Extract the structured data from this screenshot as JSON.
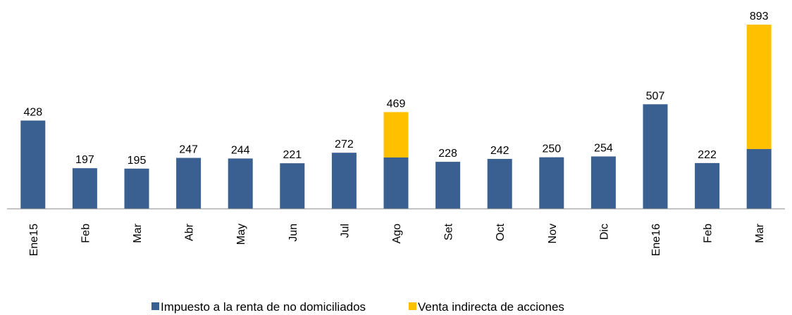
{
  "chart_data": {
    "type": "stacked_bar",
    "categories": [
      "Ene15",
      "Feb",
      "Mar",
      "Abr",
      "May",
      "Jun",
      "Jul",
      "Ago",
      "Set",
      "Oct",
      "Nov",
      "Dic",
      "Ene16",
      "Feb",
      "Mar"
    ],
    "series": [
      {
        "name": "Impuesto a la renta de no domiciliados",
        "color": "#3a5f91",
        "values": [
          428,
          197,
          195,
          247,
          244,
          221,
          272,
          249,
          228,
          242,
          250,
          254,
          507,
          222,
          290
        ]
      },
      {
        "name": "Venta indirecta de acciones",
        "color": "#ffc000",
        "values": [
          0,
          0,
          0,
          0,
          0,
          0,
          0,
          220,
          0,
          0,
          0,
          0,
          0,
          0,
          603
        ]
      }
    ],
    "totals": [
      428,
      197,
      195,
      247,
      244,
      221,
      272,
      469,
      228,
      242,
      250,
      254,
      507,
      222,
      893
    ],
    "ylim": [
      0,
      900
    ]
  }
}
